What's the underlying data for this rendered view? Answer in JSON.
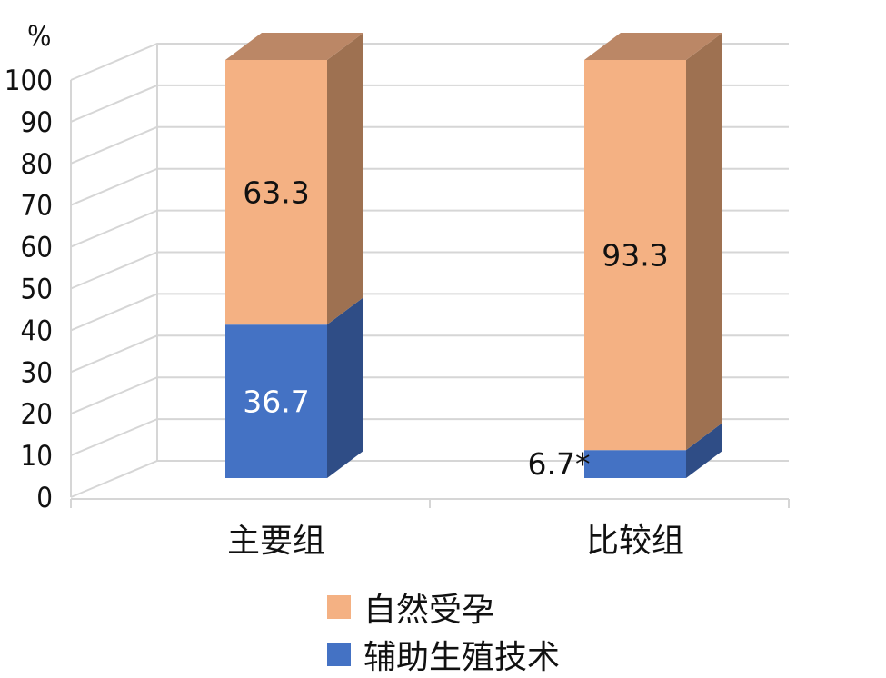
{
  "chart_data": {
    "type": "bar",
    "stacked": true,
    "three_d": true,
    "ylabel": "%",
    "ylim": [
      0,
      100
    ],
    "yticks": [
      0,
      10,
      20,
      30,
      40,
      50,
      60,
      70,
      80,
      90,
      100
    ],
    "grid": true,
    "legend_position": "bottom",
    "categories": [
      "主要组",
      "比较组"
    ],
    "series": [
      {
        "name": "辅助生殖技术",
        "values": [
          36.7,
          6.7
        ],
        "labels": [
          "36.7",
          "6.7*"
        ],
        "color": "#4472C4",
        "side_color": "#2F4D86",
        "label_color": "#ffffff"
      },
      {
        "name": "自然受孕",
        "values": [
          63.3,
          93.3
        ],
        "labels": [
          "63.3",
          "93.3"
        ],
        "color": "#F4B183",
        "side_color": "#9E7151",
        "top_color": "#BB8766",
        "label_color": "#111111"
      }
    ]
  }
}
